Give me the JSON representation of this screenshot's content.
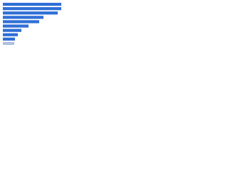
{
  "chart_data": {
    "type": "bar",
    "orientation": "horizontal",
    "categories": [
      null,
      null,
      null,
      null,
      null,
      null,
      null,
      null,
      null,
      null
    ],
    "values": [
      82,
      82,
      77,
      57,
      51,
      36,
      26,
      21,
      17,
      16
    ],
    "colors": [
      "#2f6fd6",
      "#2f6fd6",
      "#2f6fd6",
      "#2f6fd6",
      "#2f6fd6",
      "#2f6fd6",
      "#2f6fd6",
      "#2f6fd6",
      "#2f6fd6",
      "#aebfdf"
    ]
  }
}
